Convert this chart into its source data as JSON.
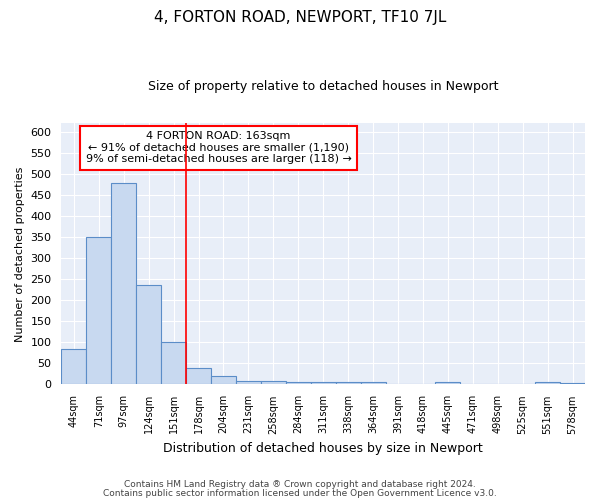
{
  "title": "4, FORTON ROAD, NEWPORT, TF10 7JL",
  "subtitle": "Size of property relative to detached houses in Newport",
  "xlabel": "Distribution of detached houses by size in Newport",
  "ylabel": "Number of detached properties",
  "bar_color": "#c8d9f0",
  "bar_edge_color": "#5b8dc8",
  "plot_bg_color": "#e8eef8",
  "fig_bg_color": "#ffffff",
  "grid_color": "#ffffff",
  "categories": [
    "44sqm",
    "71sqm",
    "97sqm",
    "124sqm",
    "151sqm",
    "178sqm",
    "204sqm",
    "231sqm",
    "258sqm",
    "284sqm",
    "311sqm",
    "338sqm",
    "364sqm",
    "391sqm",
    "418sqm",
    "445sqm",
    "471sqm",
    "498sqm",
    "525sqm",
    "551sqm",
    "578sqm"
  ],
  "values": [
    85,
    350,
    478,
    235,
    100,
    38,
    20,
    8,
    7,
    5,
    5,
    5,
    5,
    0,
    0,
    5,
    0,
    0,
    0,
    5,
    4
  ],
  "ylim": [
    0,
    620
  ],
  "yticks": [
    0,
    50,
    100,
    150,
    200,
    250,
    300,
    350,
    400,
    450,
    500,
    550,
    600
  ],
  "red_line_index": 5,
  "annotation_title": "4 FORTON ROAD: 163sqm",
  "annotation_line1": "← 91% of detached houses are smaller (1,190)",
  "annotation_line2": "9% of semi-detached houses are larger (118) →",
  "footnote1": "Contains HM Land Registry data ® Crown copyright and database right 2024.",
  "footnote2": "Contains public sector information licensed under the Open Government Licence v3.0."
}
